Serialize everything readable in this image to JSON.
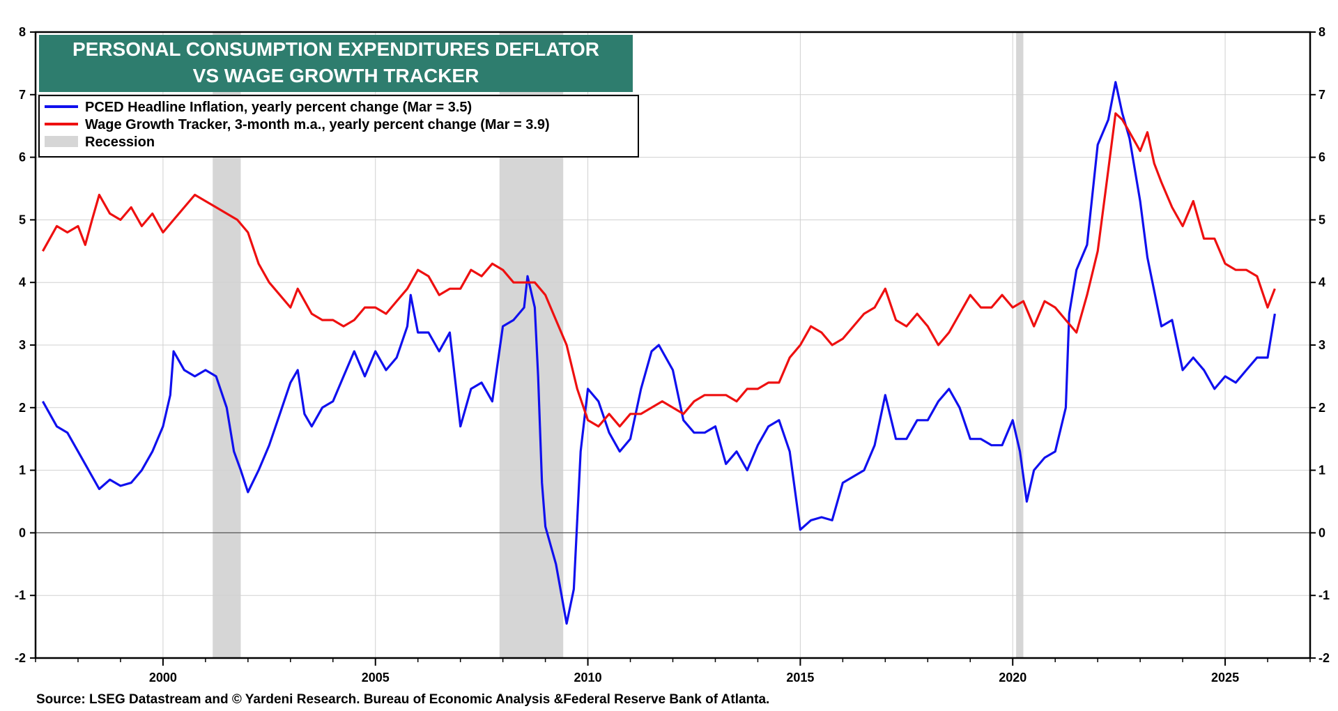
{
  "chart_data": {
    "type": "line",
    "title_lines": [
      "PERSONAL CONSUMPTION EXPENDITURES DEFLATOR",
      "VS WAGE GROWTH TRACKER"
    ],
    "xlabel": "",
    "ylabel": "",
    "xlim": [
      1997.0,
      2027.0
    ],
    "ylim": [
      -2,
      8
    ],
    "y_ticks": [
      -2,
      -1,
      0,
      1,
      2,
      3,
      4,
      5,
      6,
      7,
      8
    ],
    "x_ticks": [
      2000,
      2005,
      2010,
      2015,
      2020,
      2025
    ],
    "x_tick_labels": [
      "2000",
      "2005",
      "2010",
      "2015",
      "2020",
      "2025"
    ],
    "grid": true,
    "legend_position": "top-left",
    "recessions": [
      [
        2001.17,
        2001.83
      ],
      [
        2007.92,
        2009.42
      ],
      [
        2020.08,
        2020.25
      ]
    ],
    "series": [
      {
        "name": "PCED Headline Inflation, yearly percent change (Mar = 3.5)",
        "color": "#1010ee",
        "points": [
          [
            1997.17,
            2.1
          ],
          [
            1997.5,
            1.7
          ],
          [
            1997.75,
            1.6
          ],
          [
            1998.0,
            1.3
          ],
          [
            1998.25,
            1.0
          ],
          [
            1998.5,
            0.7
          ],
          [
            1998.75,
            0.85
          ],
          [
            1999.0,
            0.75
          ],
          [
            1999.25,
            0.8
          ],
          [
            1999.5,
            1.0
          ],
          [
            1999.75,
            1.3
          ],
          [
            2000.0,
            1.7
          ],
          [
            2000.17,
            2.2
          ],
          [
            2000.25,
            2.9
          ],
          [
            2000.5,
            2.6
          ],
          [
            2000.75,
            2.5
          ],
          [
            2001.0,
            2.6
          ],
          [
            2001.25,
            2.5
          ],
          [
            2001.5,
            2.0
          ],
          [
            2001.67,
            1.3
          ],
          [
            2001.83,
            1.0
          ],
          [
            2002.0,
            0.65
          ],
          [
            2002.25,
            1.0
          ],
          [
            2002.5,
            1.4
          ],
          [
            2002.75,
            1.9
          ],
          [
            2003.0,
            2.4
          ],
          [
            2003.17,
            2.6
          ],
          [
            2003.33,
            1.9
          ],
          [
            2003.5,
            1.7
          ],
          [
            2003.75,
            2.0
          ],
          [
            2004.0,
            2.1
          ],
          [
            2004.25,
            2.5
          ],
          [
            2004.5,
            2.9
          ],
          [
            2004.75,
            2.5
          ],
          [
            2005.0,
            2.9
          ],
          [
            2005.25,
            2.6
          ],
          [
            2005.5,
            2.8
          ],
          [
            2005.75,
            3.3
          ],
          [
            2005.83,
            3.8
          ],
          [
            2006.0,
            3.2
          ],
          [
            2006.25,
            3.2
          ],
          [
            2006.5,
            2.9
          ],
          [
            2006.75,
            3.2
          ],
          [
            2007.0,
            1.7
          ],
          [
            2007.25,
            2.3
          ],
          [
            2007.5,
            2.4
          ],
          [
            2007.75,
            2.1
          ],
          [
            2008.0,
            3.3
          ],
          [
            2008.25,
            3.4
          ],
          [
            2008.5,
            3.6
          ],
          [
            2008.58,
            4.1
          ],
          [
            2008.75,
            3.6
          ],
          [
            2008.83,
            2.5
          ],
          [
            2008.92,
            0.8
          ],
          [
            2009.0,
            0.1
          ],
          [
            2009.25,
            -0.5
          ],
          [
            2009.5,
            -1.45
          ],
          [
            2009.67,
            -0.9
          ],
          [
            2009.83,
            1.3
          ],
          [
            2010.0,
            2.3
          ],
          [
            2010.25,
            2.1
          ],
          [
            2010.5,
            1.6
          ],
          [
            2010.75,
            1.3
          ],
          [
            2011.0,
            1.5
          ],
          [
            2011.25,
            2.3
          ],
          [
            2011.5,
            2.9
          ],
          [
            2011.67,
            3.0
          ],
          [
            2012.0,
            2.6
          ],
          [
            2012.25,
            1.8
          ],
          [
            2012.5,
            1.6
          ],
          [
            2012.75,
            1.6
          ],
          [
            2013.0,
            1.7
          ],
          [
            2013.25,
            1.1
          ],
          [
            2013.5,
            1.3
          ],
          [
            2013.75,
            1.0
          ],
          [
            2014.0,
            1.4
          ],
          [
            2014.25,
            1.7
          ],
          [
            2014.5,
            1.8
          ],
          [
            2014.75,
            1.3
          ],
          [
            2015.0,
            0.05
          ],
          [
            2015.25,
            0.2
          ],
          [
            2015.5,
            0.25
          ],
          [
            2015.75,
            0.2
          ],
          [
            2016.0,
            0.8
          ],
          [
            2016.25,
            0.9
          ],
          [
            2016.5,
            1.0
          ],
          [
            2016.75,
            1.4
          ],
          [
            2017.0,
            2.2
          ],
          [
            2017.25,
            1.5
          ],
          [
            2017.5,
            1.5
          ],
          [
            2017.75,
            1.8
          ],
          [
            2018.0,
            1.8
          ],
          [
            2018.25,
            2.1
          ],
          [
            2018.5,
            2.3
          ],
          [
            2018.75,
            2.0
          ],
          [
            2019.0,
            1.5
          ],
          [
            2019.25,
            1.5
          ],
          [
            2019.5,
            1.4
          ],
          [
            2019.75,
            1.4
          ],
          [
            2020.0,
            1.8
          ],
          [
            2020.17,
            1.3
          ],
          [
            2020.33,
            0.5
          ],
          [
            2020.5,
            1.0
          ],
          [
            2020.75,
            1.2
          ],
          [
            2021.0,
            1.3
          ],
          [
            2021.25,
            2.0
          ],
          [
            2021.33,
            3.5
          ],
          [
            2021.5,
            4.2
          ],
          [
            2021.75,
            4.6
          ],
          [
            2022.0,
            6.2
          ],
          [
            2022.25,
            6.6
          ],
          [
            2022.42,
            7.2
          ],
          [
            2022.58,
            6.7
          ],
          [
            2022.75,
            6.3
          ],
          [
            2023.0,
            5.3
          ],
          [
            2023.17,
            4.4
          ],
          [
            2023.5,
            3.3
          ],
          [
            2023.75,
            3.4
          ],
          [
            2024.0,
            2.6
          ],
          [
            2024.25,
            2.8
          ],
          [
            2024.5,
            2.6
          ],
          [
            2024.75,
            2.3
          ],
          [
            2025.0,
            2.5
          ],
          [
            2025.25,
            2.4
          ],
          [
            2025.5,
            2.6
          ],
          [
            2025.75,
            2.8
          ],
          [
            2026.0,
            2.8
          ],
          [
            2026.17,
            3.5
          ]
        ]
      },
      {
        "name": "Wage Growth Tracker, 3-month m.a., yearly percent change (Mar = 3.9)",
        "color": "#ee1010",
        "points": [
          [
            1997.17,
            4.5
          ],
          [
            1997.5,
            4.9
          ],
          [
            1997.75,
            4.8
          ],
          [
            1998.0,
            4.9
          ],
          [
            1998.17,
            4.6
          ],
          [
            1998.33,
            5.0
          ],
          [
            1998.5,
            5.4
          ],
          [
            1998.75,
            5.1
          ],
          [
            1999.0,
            5.0
          ],
          [
            1999.25,
            5.2
          ],
          [
            1999.5,
            4.9
          ],
          [
            1999.75,
            5.1
          ],
          [
            2000.0,
            4.8
          ],
          [
            2000.25,
            5.0
          ],
          [
            2000.5,
            5.2
          ],
          [
            2000.75,
            5.4
          ],
          [
            2001.0,
            5.3
          ],
          [
            2001.25,
            5.2
          ],
          [
            2001.5,
            5.1
          ],
          [
            2001.75,
            5.0
          ],
          [
            2002.0,
            4.8
          ],
          [
            2002.25,
            4.3
          ],
          [
            2002.5,
            4.0
          ],
          [
            2002.75,
            3.8
          ],
          [
            2003.0,
            3.6
          ],
          [
            2003.17,
            3.9
          ],
          [
            2003.5,
            3.5
          ],
          [
            2003.75,
            3.4
          ],
          [
            2004.0,
            3.4
          ],
          [
            2004.25,
            3.3
          ],
          [
            2004.5,
            3.4
          ],
          [
            2004.75,
            3.6
          ],
          [
            2005.0,
            3.6
          ],
          [
            2005.25,
            3.5
          ],
          [
            2005.5,
            3.7
          ],
          [
            2005.75,
            3.9
          ],
          [
            2006.0,
            4.2
          ],
          [
            2006.25,
            4.1
          ],
          [
            2006.5,
            3.8
          ],
          [
            2006.75,
            3.9
          ],
          [
            2007.0,
            3.9
          ],
          [
            2007.25,
            4.2
          ],
          [
            2007.5,
            4.1
          ],
          [
            2007.75,
            4.3
          ],
          [
            2008.0,
            4.2
          ],
          [
            2008.25,
            4.0
          ],
          [
            2008.5,
            4.0
          ],
          [
            2008.75,
            4.0
          ],
          [
            2009.0,
            3.8
          ],
          [
            2009.25,
            3.4
          ],
          [
            2009.5,
            3.0
          ],
          [
            2009.75,
            2.3
          ],
          [
            2010.0,
            1.8
          ],
          [
            2010.25,
            1.7
          ],
          [
            2010.5,
            1.9
          ],
          [
            2010.75,
            1.7
          ],
          [
            2011.0,
            1.9
          ],
          [
            2011.25,
            1.9
          ],
          [
            2011.5,
            2.0
          ],
          [
            2011.75,
            2.1
          ],
          [
            2012.0,
            2.0
          ],
          [
            2012.25,
            1.9
          ],
          [
            2012.5,
            2.1
          ],
          [
            2012.75,
            2.2
          ],
          [
            2013.0,
            2.2
          ],
          [
            2013.25,
            2.2
          ],
          [
            2013.5,
            2.1
          ],
          [
            2013.75,
            2.3
          ],
          [
            2014.0,
            2.3
          ],
          [
            2014.25,
            2.4
          ],
          [
            2014.5,
            2.4
          ],
          [
            2014.75,
            2.8
          ],
          [
            2015.0,
            3.0
          ],
          [
            2015.25,
            3.3
          ],
          [
            2015.5,
            3.2
          ],
          [
            2015.75,
            3.0
          ],
          [
            2016.0,
            3.1
          ],
          [
            2016.25,
            3.3
          ],
          [
            2016.5,
            3.5
          ],
          [
            2016.75,
            3.6
          ],
          [
            2017.0,
            3.9
          ],
          [
            2017.25,
            3.4
          ],
          [
            2017.5,
            3.3
          ],
          [
            2017.75,
            3.5
          ],
          [
            2018.0,
            3.3
          ],
          [
            2018.25,
            3.0
          ],
          [
            2018.5,
            3.2
          ],
          [
            2018.75,
            3.5
          ],
          [
            2019.0,
            3.8
          ],
          [
            2019.25,
            3.6
          ],
          [
            2019.5,
            3.6
          ],
          [
            2019.75,
            3.8
          ],
          [
            2020.0,
            3.6
          ],
          [
            2020.25,
            3.7
          ],
          [
            2020.5,
            3.3
          ],
          [
            2020.75,
            3.7
          ],
          [
            2021.0,
            3.6
          ],
          [
            2021.25,
            3.4
          ],
          [
            2021.5,
            3.2
          ],
          [
            2021.75,
            3.8
          ],
          [
            2022.0,
            4.5
          ],
          [
            2022.25,
            5.8
          ],
          [
            2022.42,
            6.7
          ],
          [
            2022.58,
            6.6
          ],
          [
            2022.75,
            6.4
          ],
          [
            2023.0,
            6.1
          ],
          [
            2023.17,
            6.4
          ],
          [
            2023.33,
            5.9
          ],
          [
            2023.5,
            5.6
          ],
          [
            2023.75,
            5.2
          ],
          [
            2024.0,
            4.9
          ],
          [
            2024.25,
            5.3
          ],
          [
            2024.5,
            4.7
          ],
          [
            2024.75,
            4.7
          ],
          [
            2025.0,
            4.3
          ],
          [
            2025.25,
            4.2
          ],
          [
            2025.5,
            4.2
          ],
          [
            2025.75,
            4.1
          ],
          [
            2026.0,
            3.6
          ],
          [
            2026.17,
            3.9
          ]
        ]
      }
    ],
    "legend": [
      {
        "label": "PCED Headline Inflation, yearly percent change (Mar = 3.5)",
        "kind": "line",
        "color": "#1010ee"
      },
      {
        "label": "Wage Growth Tracker, 3-month m.a., yearly percent change (Mar = 3.9)",
        "kind": "line",
        "color": "#ee1010"
      },
      {
        "label": "Recession",
        "kind": "area",
        "color": "#d6d6d6"
      }
    ],
    "source": "Source: LSEG Datastream and © Yardeni Research. Bureau of Economic Analysis &Federal Reserve Bank of Atlanta."
  },
  "colors": {
    "title_bg": "#2e7d6e",
    "title_text": "#ffffff",
    "grid": "#d0d0d0",
    "recession": "#d6d6d6",
    "zero_line": "#555555"
  }
}
